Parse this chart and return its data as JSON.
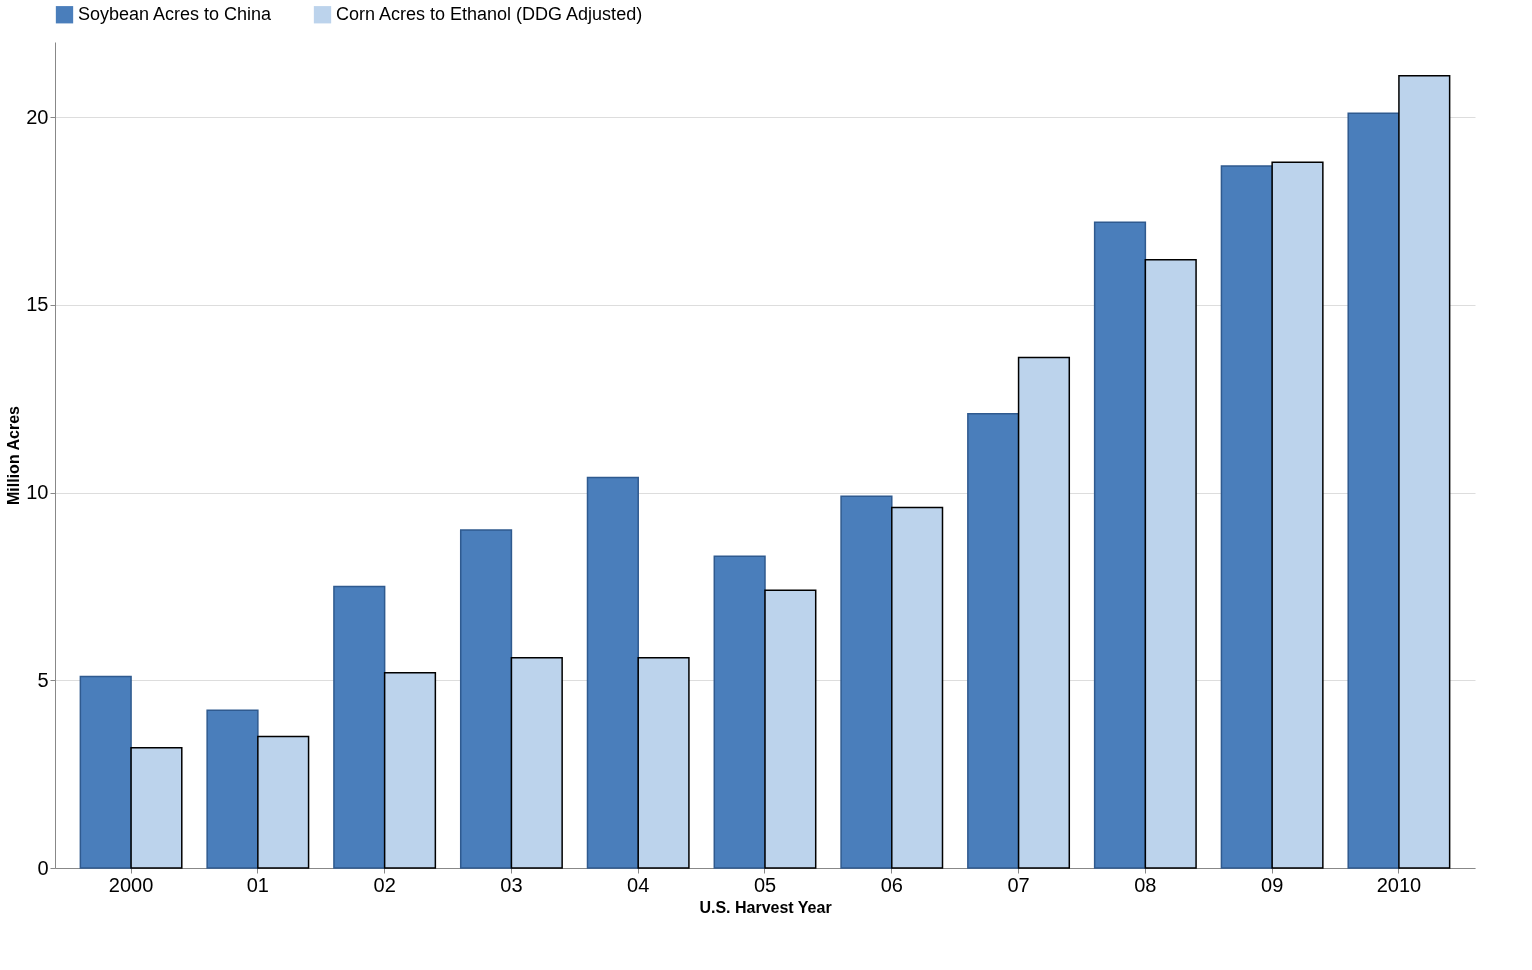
{
  "chart_data": {
    "type": "bar",
    "categories": [
      "2000",
      "01",
      "02",
      "03",
      "04",
      "05",
      "06",
      "07",
      "08",
      "09",
      "2010"
    ],
    "series": [
      {
        "name": "Soybean Acres to China",
        "color": "#4a7ebb",
        "values": [
          5.1,
          4.2,
          7.5,
          9.0,
          10.4,
          8.3,
          9.9,
          12.1,
          17.2,
          18.7,
          20.1
        ]
      },
      {
        "name": "Corn Acres to Ethanol (DDG Adjusted)",
        "color": "#bcd3ec",
        "values": [
          3.2,
          3.5,
          5.2,
          5.6,
          5.6,
          7.4,
          9.6,
          13.6,
          16.2,
          18.8,
          21.1
        ]
      }
    ],
    "xlabel": "U.S. Harvest Year",
    "ylabel": "Million Acres",
    "ylim": [
      0,
      22
    ],
    "yticks": [
      0,
      5,
      10,
      15,
      20
    ],
    "grid": "y",
    "legend": "top"
  }
}
